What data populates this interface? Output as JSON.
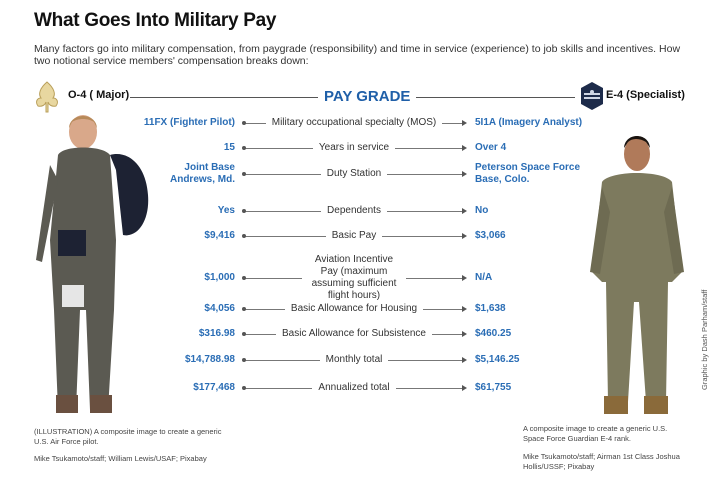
{
  "title": "What Goes Into Military Pay",
  "description": "Many factors go into military compensation, from paygrade (responsibility) and time in service (experience) to job skills and incentives. How two notional service members' compensation breaks down:",
  "pay_grade": {
    "label": "PAY GRADE",
    "left": "O-4 ( Major)",
    "right": "E-4 (Specialist)"
  },
  "rows": [
    {
      "label": "Military occupational specialty (MOS)",
      "left": "11FX (Fighter Pilot)",
      "right": "5I1A (Imagery Analyst)"
    },
    {
      "label": "Years in service",
      "left": "15",
      "right": "Over 4"
    },
    {
      "label": "Duty Station",
      "left": "Joint Base Andrews, Md.",
      "right": "Peterson Space Force Base, Colo."
    },
    {
      "label": "Dependents",
      "left": "Yes",
      "right": "No"
    },
    {
      "label": "Basic Pay",
      "left": "$9,416",
      "right": "$3,066"
    },
    {
      "label": "Aviation Incentive Pay (maximum assuming sufficient flight hours)",
      "left": "$1,000",
      "right": "N/A"
    },
    {
      "label": "Basic Allowance for Housing",
      "left": "$4,056",
      "right": "$1,638"
    },
    {
      "label": "Basic Allowance for Subsistence",
      "left": "$316.98",
      "right": "$460.25"
    },
    {
      "label": "Monthly total",
      "left": "$14,788.98",
      "right": "$5,146.25"
    },
    {
      "label": "Annualized total",
      "left": "$177,468",
      "right": "$61,755"
    }
  ],
  "captions": {
    "left": "(ILLUSTRATION) A composite image to create a generic U.S. Air Force pilot.",
    "left_credit": "Mike Tsukamoto/staff; William Lewis/USAF; Pixabay",
    "right": "A composite image to create a generic U.S. Space Force Guardian E-4 rank.",
    "right_credit": "Mike Tsukamoto/staff; Airman 1st Class Joshua Hollis/USSF; Pixabay"
  },
  "graphic_credit": "Graphic by Dash Parham/staff",
  "colors": {
    "accent": "#2a6db5",
    "title": "#1f5fa8"
  }
}
